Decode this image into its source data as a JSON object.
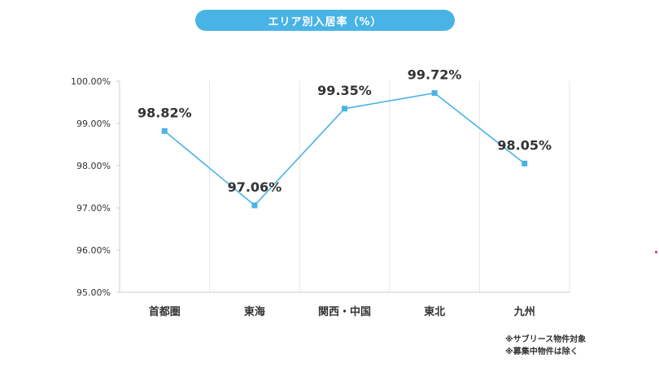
{
  "colors": {
    "accent": "#4ab3e6",
    "line": "#4ab3e6",
    "grid": "#e6e6e6",
    "text": "#333333"
  },
  "chart_data": {
    "type": "line",
    "title": "エリア別入居率（%）",
    "categories": [
      "首都圏",
      "東海",
      "関西・中国",
      "東北",
      "九州"
    ],
    "series": [
      {
        "values": [
          98.82,
          97.06,
          99.35,
          99.72,
          98.05
        ]
      }
    ],
    "data_labels": [
      "98.82%",
      "97.06%",
      "99.35%",
      "99.72%",
      "98.05%"
    ],
    "ylim": [
      95,
      100
    ],
    "yticks": [
      95,
      96,
      97,
      98,
      99,
      100
    ],
    "ytick_labels": [
      "95.00%",
      "96.00%",
      "97.00%",
      "98.00%",
      "99.00%",
      "100.00%"
    ],
    "xlabel": "",
    "ylabel": "",
    "grid": "vertical",
    "legend": "none"
  },
  "notes": [
    "※サブリース物件対象",
    "※募集中物件は除く"
  ]
}
